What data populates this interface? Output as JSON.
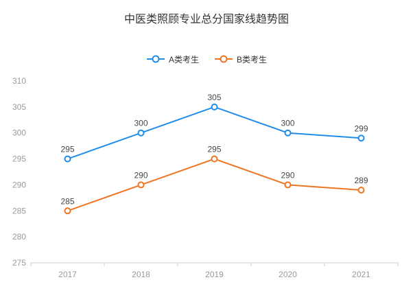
{
  "chart_data": {
    "type": "line",
    "title": "中医类照顾专业总分国家线趋势图",
    "categories": [
      "2017",
      "2018",
      "2019",
      "2020",
      "2021"
    ],
    "series": [
      {
        "name": "A类考生",
        "color": "#1f8ceb",
        "values": [
          295,
          300,
          305,
          300,
          299
        ]
      },
      {
        "name": "B类考生",
        "color": "#ee7420",
        "values": [
          285,
          290,
          295,
          290,
          289
        ]
      }
    ],
    "xlabel": "",
    "ylabel": "",
    "ylim": [
      275,
      310
    ],
    "y_tick_step": 5,
    "grid": false,
    "legend_position": "top",
    "axis_label_color": "#999999",
    "axis_line_color": "#cccccc",
    "value_label_color": "#464646",
    "marker_style": "hollow-circle"
  }
}
